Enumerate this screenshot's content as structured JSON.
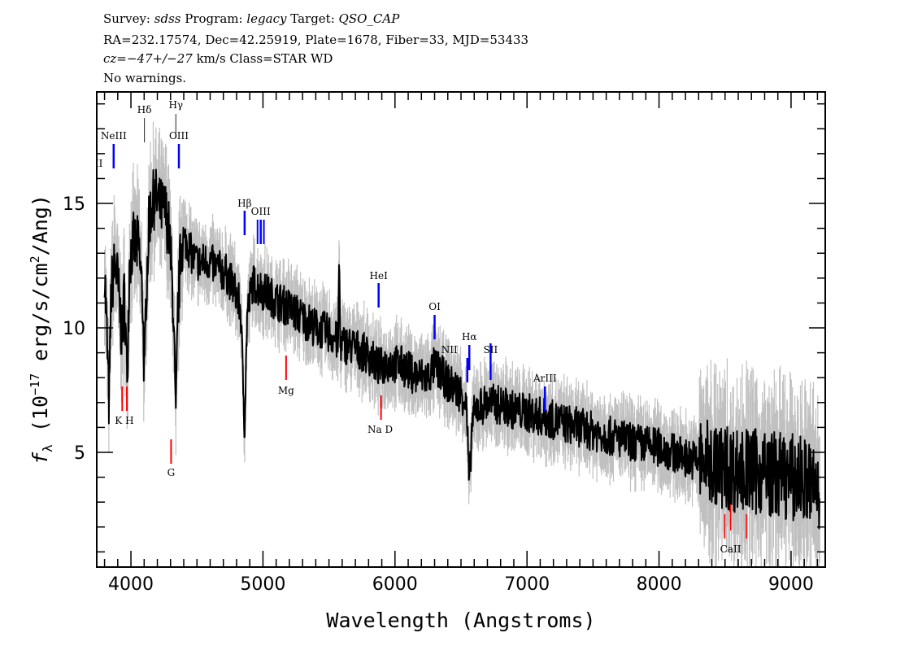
{
  "header": {
    "line1": {
      "survey_label": "Survey:",
      "survey": "sdss",
      "program_label": "Program:",
      "program": "legacy",
      "target_label": "Target:",
      "target": "QSO_CAP"
    },
    "line2": "RA=232.17574, Dec=42.25919, Plate=1678, Fiber=33, MJD=53433",
    "line3": {
      "cz": "cz=−47+/−27",
      "rest": " km/s Class=STAR WD"
    },
    "line4": "No warnings."
  },
  "chart_data": {
    "type": "line",
    "xlabel": "Wavelength (Angstroms)",
    "ylabel": {
      "f": "f",
      "sub": "λ",
      "pre": " (10",
      "exp": "−17",
      "mid": " erg/s/cm",
      "exp2": "2",
      "post": "/Ang)"
    },
    "xlim": [
      3741,
      9259
    ],
    "ylim": [
      0.39,
      19.48
    ],
    "xticks": [
      "4000",
      "5000",
      "6000",
      "7000",
      "8000",
      "9000"
    ],
    "yticks": [
      "5",
      "10",
      "15"
    ],
    "colors": {
      "flux": "#000000",
      "error_band": "#c0c0c0",
      "emission": "#0000ff",
      "absorption": "#ff0000"
    },
    "spectrum": [
      [
        3800,
        12.5
      ],
      [
        3835,
        6.8
      ],
      [
        3850,
        11.5
      ],
      [
        3880,
        12.6
      ],
      [
        3900,
        11.8
      ],
      [
        3934,
        9.5
      ],
      [
        3950,
        11.5
      ],
      [
        3970,
        7.9
      ],
      [
        3990,
        12.8
      ],
      [
        4020,
        13.4
      ],
      [
        4060,
        13.2
      ],
      [
        4090,
        11.0
      ],
      [
        4102,
        7.5
      ],
      [
        4115,
        11.5
      ],
      [
        4140,
        14.5
      ],
      [
        4180,
        15.3
      ],
      [
        4220,
        14.8
      ],
      [
        4260,
        14.7
      ],
      [
        4290,
        13.8
      ],
      [
        4320,
        11.0
      ],
      [
        4340,
        6.0
      ],
      [
        4355,
        10.5
      ],
      [
        4380,
        13.4
      ],
      [
        4420,
        13.5
      ],
      [
        4470,
        12.8
      ],
      [
        4520,
        12.6
      ],
      [
        4580,
        12.7
      ],
      [
        4650,
        12.4
      ],
      [
        4720,
        12.2
      ],
      [
        4780,
        11.6
      ],
      [
        4830,
        10.8
      ],
      [
        4861,
        6.0
      ],
      [
        4880,
        10.5
      ],
      [
        4920,
        11.8
      ],
      [
        5000,
        11.5
      ],
      [
        5100,
        11.1
      ],
      [
        5200,
        10.8
      ],
      [
        5300,
        10.4
      ],
      [
        5400,
        10.0
      ],
      [
        5500,
        9.8
      ],
      [
        5570,
        9.4
      ],
      [
        5577,
        13.2
      ],
      [
        5585,
        9.4
      ],
      [
        5700,
        9.2
      ],
      [
        5800,
        8.9
      ],
      [
        5880,
        8.4
      ],
      [
        5950,
        8.6
      ],
      [
        6050,
        8.5
      ],
      [
        6150,
        8.1
      ],
      [
        6250,
        8.0
      ],
      [
        6300,
        8.5
      ],
      [
        6400,
        7.8
      ],
      [
        6500,
        7.4
      ],
      [
        6540,
        7.0
      ],
      [
        6563,
        3.5
      ],
      [
        6585,
        6.3
      ],
      [
        6620,
        6.8
      ],
      [
        6700,
        7.0
      ],
      [
        6800,
        6.9
      ],
      [
        6900,
        6.7
      ],
      [
        7000,
        6.6
      ],
      [
        7200,
        6.3
      ],
      [
        7400,
        6.0
      ],
      [
        7600,
        5.7
      ],
      [
        7800,
        5.4
      ],
      [
        8000,
        5.2
      ],
      [
        8200,
        4.8
      ],
      [
        8400,
        4.5
      ],
      [
        8600,
        4.3
      ],
      [
        8800,
        4.2
      ],
      [
        9000,
        4.0
      ],
      [
        9100,
        3.9
      ],
      [
        9200,
        3.5
      ],
      [
        9220,
        2.8
      ]
    ],
    "emission_lines": [
      {
        "name": "OII",
        "wave": 3727
      },
      {
        "name": "NeIII",
        "wave": 3869
      },
      {
        "name": "Hδ",
        "wave": 4102
      },
      {
        "name": "Hγ",
        "wave": 4340
      },
      {
        "name": "OIII",
        "wave": 4363
      },
      {
        "name": "Hβ",
        "wave": 4861
      },
      {
        "name": "OIII",
        "wave": 4983
      },
      {
        "name": "HeI",
        "wave": 5876
      },
      {
        "name": "OI",
        "wave": 6300
      },
      {
        "name": "NII",
        "wave": 6548
      },
      {
        "name": "Hα",
        "wave": 6563
      },
      {
        "name": "SII",
        "wave": 6724
      },
      {
        "name": "ArIII",
        "wave": 7136
      }
    ],
    "absorption_lines": [
      {
        "name": "K H",
        "wave": 3950
      },
      {
        "name": "G",
        "wave": 4304
      },
      {
        "name": "Mg",
        "wave": 5175
      },
      {
        "name": "Na D",
        "wave": 5894
      },
      {
        "name": "CaII",
        "wave": 8542
      }
    ]
  }
}
